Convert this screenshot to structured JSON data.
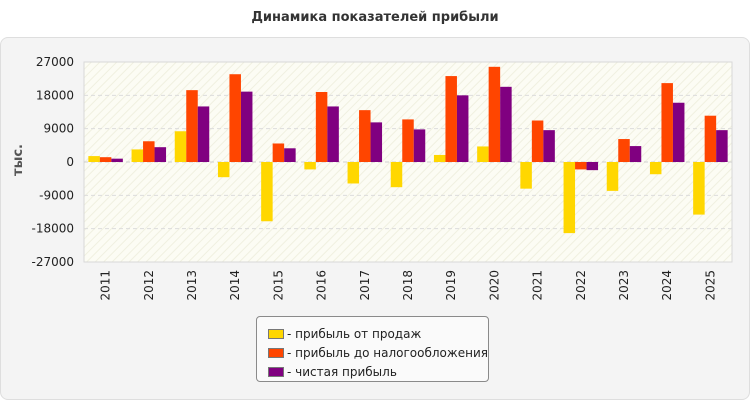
{
  "chart_data": {
    "type": "bar",
    "title": "Динамика показателей прибыли",
    "ylabel": "тыс.",
    "ylim": [
      -27000,
      27000
    ],
    "yticks": [
      27000,
      18000,
      9000,
      0,
      -9000,
      -18000,
      -27000
    ],
    "ytick_labels": [
      "27000",
      "18000",
      "9000",
      "0",
      "-9000",
      "-18000",
      "-27000"
    ],
    "grid": true,
    "legend_position": "bottom",
    "categories": [
      "2011",
      "2012",
      "2013",
      "2014",
      "2015",
      "2016",
      "2017",
      "2018",
      "2019",
      "2020",
      "2021",
      "2022",
      "2023",
      "2024",
      "2025"
    ],
    "series": [
      {
        "name": "прибыль от продаж",
        "color": "#ffd700",
        "values": [
          1600,
          3400,
          8300,
          -4100,
          -16000,
          -2000,
          -5800,
          -6800,
          1900,
          4200,
          -7200,
          -19200,
          -7800,
          -3300,
          -14200
        ]
      },
      {
        "name": "прибыль до налогообложения",
        "color": "#ff4500",
        "values": [
          1300,
          5600,
          19400,
          23700,
          5000,
          18900,
          14000,
          11500,
          23200,
          25700,
          11200,
          -2000,
          6200,
          21300,
          12500
        ]
      },
      {
        "name": "чистая прибыль",
        "color": "#800080",
        "values": [
          900,
          4000,
          15000,
          19000,
          3700,
          15000,
          10700,
          8800,
          18000,
          20300,
          8600,
          -2200,
          4300,
          16000,
          8600
        ]
      }
    ]
  },
  "legend": {
    "items": [
      {
        "label": "- прибыль от продаж",
        "color": "#ffd700"
      },
      {
        "label": "- прибыль до налогообложения",
        "color": "#ff4500"
      },
      {
        "label": "- чистая прибыль",
        "color": "#800080"
      }
    ]
  }
}
